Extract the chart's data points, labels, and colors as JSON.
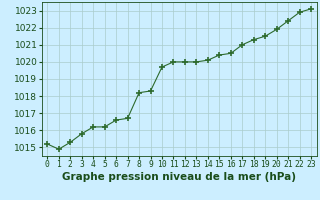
{
  "x": [
    0,
    1,
    2,
    3,
    4,
    5,
    6,
    7,
    8,
    9,
    10,
    11,
    12,
    13,
    14,
    15,
    16,
    17,
    18,
    19,
    20,
    21,
    22,
    23
  ],
  "y": [
    1015.2,
    1014.9,
    1015.3,
    1015.8,
    1016.2,
    1016.2,
    1016.6,
    1016.7,
    1018.2,
    1018.3,
    1019.7,
    1020.0,
    1020.0,
    1020.0,
    1020.1,
    1020.4,
    1020.5,
    1021.0,
    1021.3,
    1021.5,
    1021.9,
    1022.4,
    1022.9,
    1023.1
  ],
  "line_color": "#2d6a2d",
  "marker": "+",
  "marker_size": 4,
  "marker_linewidth": 1.2,
  "bg_color": "#cceeff",
  "grid_color": "#aacccc",
  "xlabel": "Graphe pression niveau de la mer (hPa)",
  "xlabel_color": "#1a4d1a",
  "xlabel_fontsize": 7.5,
  "tick_color": "#1a4d1a",
  "ytick_fontsize": 6.5,
  "xtick_fontsize": 5.8,
  "ylim": [
    1014.5,
    1023.5
  ],
  "yticks": [
    1015,
    1016,
    1017,
    1018,
    1019,
    1020,
    1021,
    1022,
    1023
  ],
  "xlim": [
    -0.5,
    23.5
  ],
  "xticks": [
    0,
    1,
    2,
    3,
    4,
    5,
    6,
    7,
    8,
    9,
    10,
    11,
    12,
    13,
    14,
    15,
    16,
    17,
    18,
    19,
    20,
    21,
    22,
    23
  ],
  "xtick_labels": [
    "0",
    "1",
    "2",
    "3",
    "4",
    "5",
    "6",
    "7",
    "8",
    "9",
    "10",
    "11",
    "12",
    "13",
    "14",
    "15",
    "16",
    "17",
    "18",
    "19",
    "20",
    "21",
    "22",
    "23"
  ]
}
